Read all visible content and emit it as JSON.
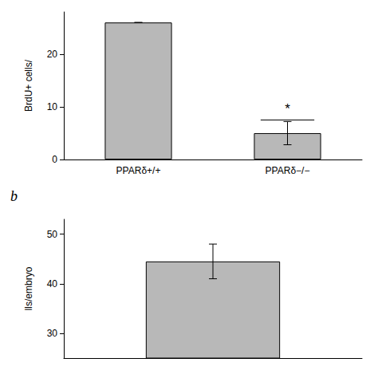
{
  "chart_data": [
    {
      "type": "bar",
      "categories": [
        "PPARδ+/+",
        "PPARδ−/−"
      ],
      "values": [
        26.0,
        5.0
      ],
      "errors": [
        0.0,
        2.2
      ],
      "color": "#b8b8b8",
      "ylabel": "BrdU+ cells/",
      "ylim": [
        0,
        28
      ],
      "yticks": [
        0,
        10,
        20
      ],
      "grid": false,
      "annotations": [
        {
          "text": "*",
          "x": "PPARδ−/−",
          "y": 8.4,
          "line_y": 7.5
        }
      ]
    },
    {
      "type": "bar",
      "title": "b",
      "categories": [
        null
      ],
      "values": [
        44.5
      ],
      "errors": [
        3.5
      ],
      "color": "#b8b8b8",
      "ylabel": "lls/embryo",
      "ylim": [
        25,
        53
      ],
      "yticks": [
        30,
        40,
        50
      ],
      "grid": false
    }
  ]
}
